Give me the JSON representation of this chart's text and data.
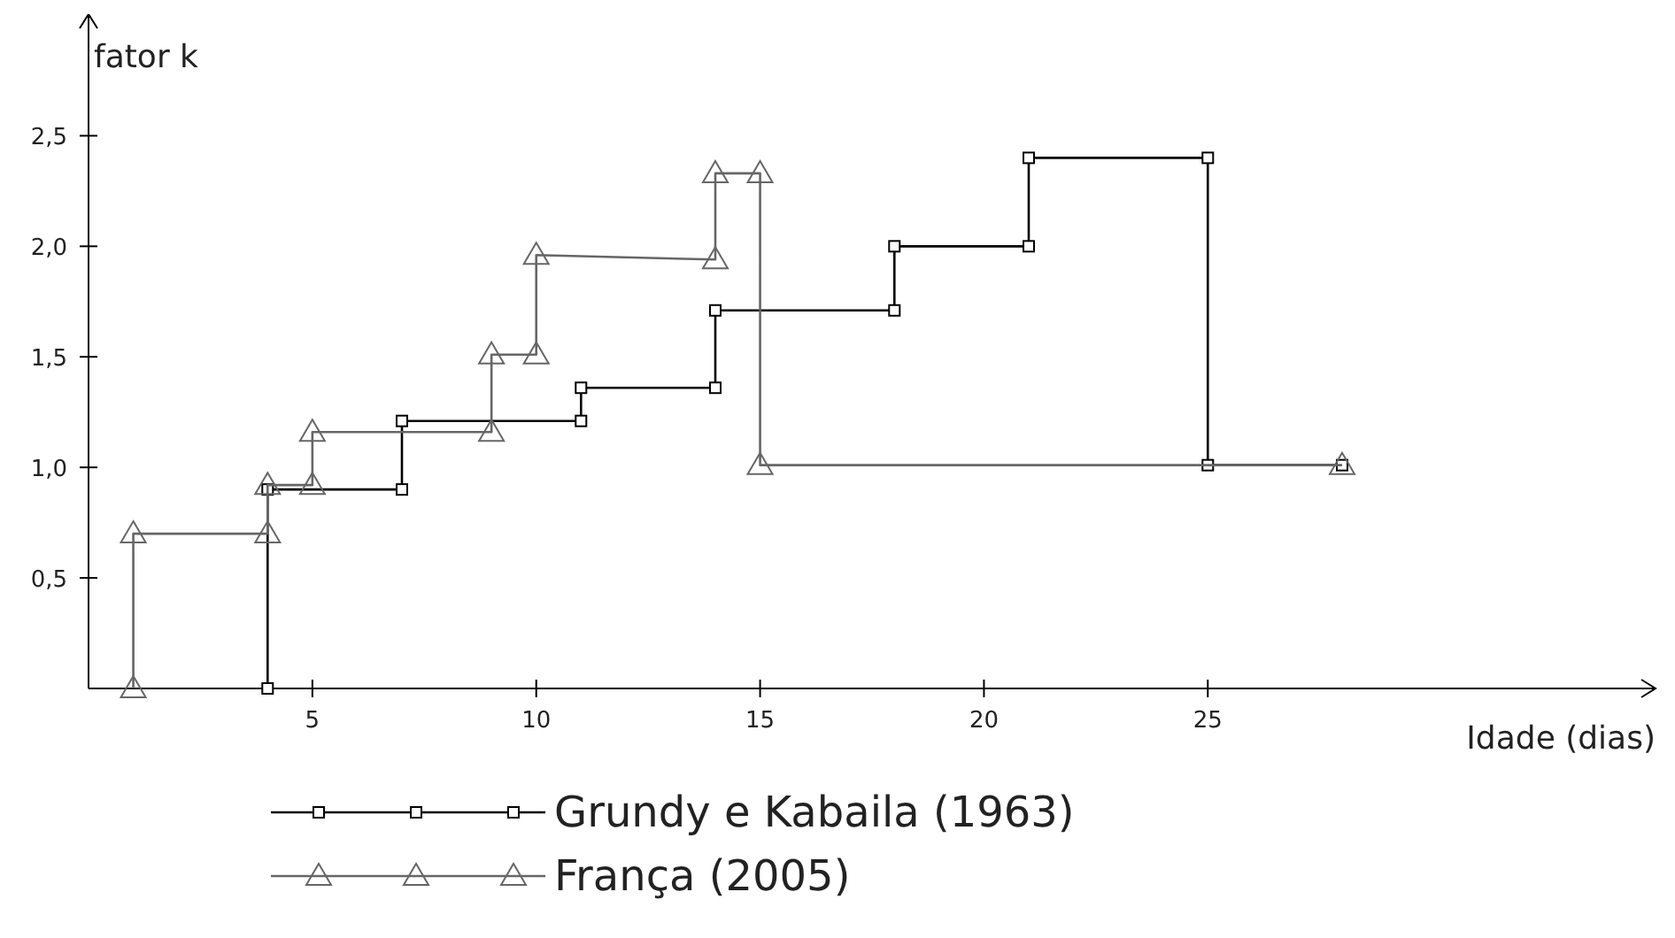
{
  "chart_data": {
    "type": "line",
    "xlabel": "Idade (dias)",
    "ylabel": "fator k",
    "xlim": [
      0,
      35
    ],
    "ylim": [
      0,
      3.05
    ],
    "xticks": [
      5,
      10,
      15,
      20,
      25
    ],
    "yticks": [
      {
        "value": 0.5,
        "label": "0,5"
      },
      {
        "value": 1,
        "label": "1,0"
      },
      {
        "value": 1.5,
        "label": "1,5"
      },
      {
        "value": 2,
        "label": "2,0"
      },
      {
        "value": 2.5,
        "label": "2,5"
      }
    ],
    "grid": false,
    "legend": "bottom",
    "line_style": "solid",
    "series": [
      {
        "name": "Grundy e Kabaila (1963)",
        "color": "#000000",
        "marker": "square",
        "x": [
          4,
          4,
          7,
          7,
          11,
          11,
          14,
          14,
          18,
          18,
          21,
          21,
          25,
          25,
          28
        ],
        "values": [
          0,
          0.9,
          0.9,
          1.21,
          1.21,
          1.36,
          1.36,
          1.71,
          1.71,
          2.0,
          2.0,
          2.4,
          2.4,
          1.01,
          1.01
        ]
      },
      {
        "name": "França (2005)",
        "color": "#666666",
        "marker": "triangle",
        "x": [
          1,
          1,
          4,
          4,
          5,
          5,
          9,
          9,
          10,
          10,
          14,
          14,
          15,
          15,
          28
        ],
        "values": [
          0,
          0.7,
          0.7,
          0.92,
          0.92,
          1.16,
          1.16,
          1.51,
          1.51,
          1.96,
          1.94,
          2.33,
          2.33,
          1.01,
          1.01
        ]
      }
    ]
  }
}
